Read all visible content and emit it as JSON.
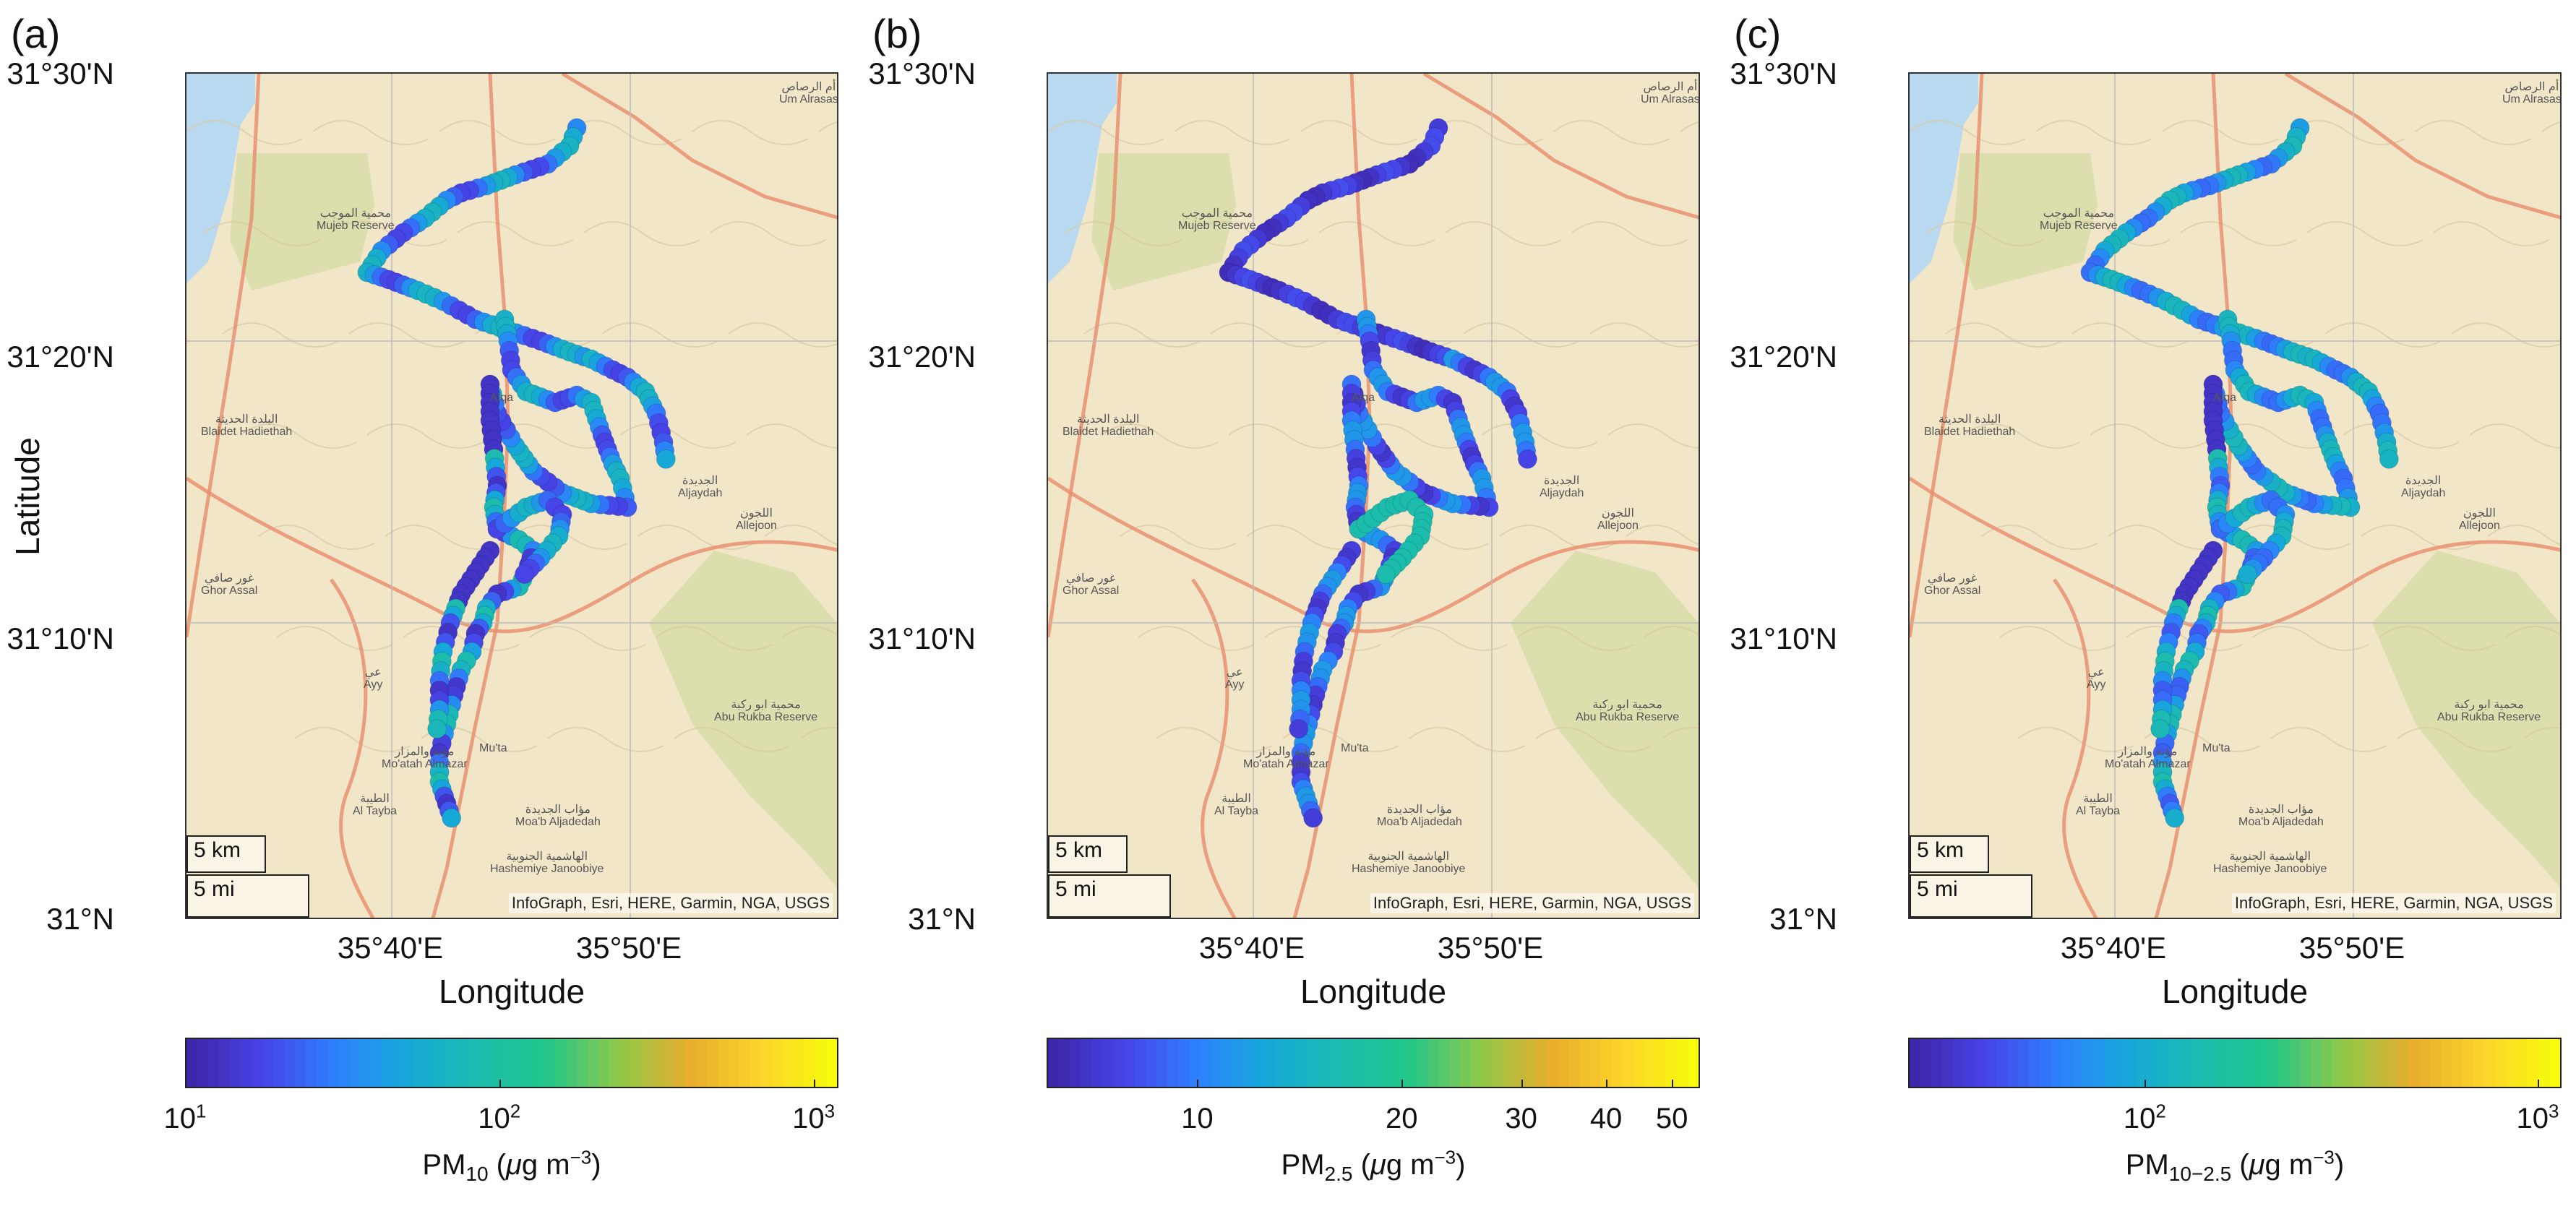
{
  "axes": {
    "lat_ticks": [
      "31°30'N",
      "31°20'N",
      "31°10'N",
      "31°N"
    ],
    "lon_ticks": [
      "35°40'E",
      "35°50'E"
    ],
    "xlabel": "Longitude",
    "ylabel": "Latitude"
  },
  "map": {
    "attribution": "InfoGraph, Esri, HERE, Garmin, NGA, USGS",
    "scale_km": "5 km",
    "scale_mi": "5 mi",
    "place_labels": [
      {
        "ar": "أم الرصاص",
        "en": "Um Alrasas"
      },
      {
        "ar": "محمية الموجب",
        "en": "Mujeb Reserve"
      },
      {
        "ar": "البلدة الحديثة",
        "en": "Blaidet Hadiethah"
      },
      {
        "ar": "الجديدة",
        "en": "Aljaydah"
      },
      {
        "ar": "اللجون",
        "en": "Allejoon"
      },
      {
        "ar": "غور صافي",
        "en": "Ghor Assal"
      },
      {
        "ar": "مؤتة والمزار",
        "en": "Mo'atah Almazar"
      },
      {
        "ar": "الطيبة",
        "en": "Al Tayba"
      },
      {
        "ar": "مؤاب الجديدة",
        "en": "Moa'b Aljadedah"
      },
      {
        "ar": "الهاشمية الجنوبية",
        "en": "Hashemiye Janoobiye"
      },
      {
        "ar": "محمية ابو ركبة",
        "en": "Abu Rukba Reserve"
      },
      {
        "ar": "عي",
        "en": "Ayy"
      },
      {
        "ar": "",
        "en": "Alqa"
      },
      {
        "ar": "",
        "en": "Mu'ta"
      }
    ]
  },
  "colors": {
    "water": "#b9d9f0",
    "land": "#f1e6c8",
    "reserve": "#d7dca8",
    "road": "#e98c6c",
    "route_start": "#3b1fb0"
  },
  "colormap_stops": [
    "#3e26a8",
    "#4744e8",
    "#2e7ffe",
    "#16a8d9",
    "#1cbbaf",
    "#22c68a",
    "#8ec94a",
    "#e9ad2c",
    "#fad42a",
    "#f9fb0e"
  ],
  "panels": [
    {
      "label": "(a)",
      "colorbar": {
        "ticks": [
          {
            "base": "10",
            "exp": "1",
            "value": 10
          },
          {
            "base": "10",
            "exp": "2",
            "value": 100
          },
          {
            "base": "10",
            "exp": "3",
            "value": 1000
          }
        ],
        "range": [
          10,
          1200
        ],
        "scale": "log",
        "title_main": "PM",
        "title_sub": "10",
        "title_unit_pre": " (",
        "title_mu": "μ",
        "title_unit_mid": "g m",
        "title_unit_sup": "−3",
        "title_unit_post": ")"
      }
    },
    {
      "label": "(b)",
      "colorbar": {
        "ticks": [
          {
            "base": "10",
            "exp": "",
            "value": 10
          },
          {
            "base": "20",
            "exp": "",
            "value": 20
          },
          {
            "base": "30",
            "exp": "",
            "value": 30
          },
          {
            "base": "40",
            "exp": "",
            "value": 40
          },
          {
            "base": "50",
            "exp": "",
            "value": 50
          }
        ],
        "range": [
          6,
          55
        ],
        "scale": "log",
        "title_main": "PM",
        "title_sub": "2.5",
        "title_unit_pre": " (",
        "title_mu": "μ",
        "title_unit_mid": "g m",
        "title_unit_sup": "−3",
        "title_unit_post": ")"
      }
    },
    {
      "label": "(c)",
      "colorbar": {
        "ticks": [
          {
            "base": "10",
            "exp": "2",
            "value": 100
          },
          {
            "base": "10",
            "exp": "3",
            "value": 1000
          }
        ],
        "range": [
          25,
          1150
        ],
        "scale": "log",
        "title_main": "PM",
        "title_sub": "10−2.5",
        "title_unit_pre": " (",
        "title_mu": "μ",
        "title_unit_mid": "g m",
        "title_unit_sup": "−3",
        "title_unit_post": ")"
      }
    }
  ]
}
